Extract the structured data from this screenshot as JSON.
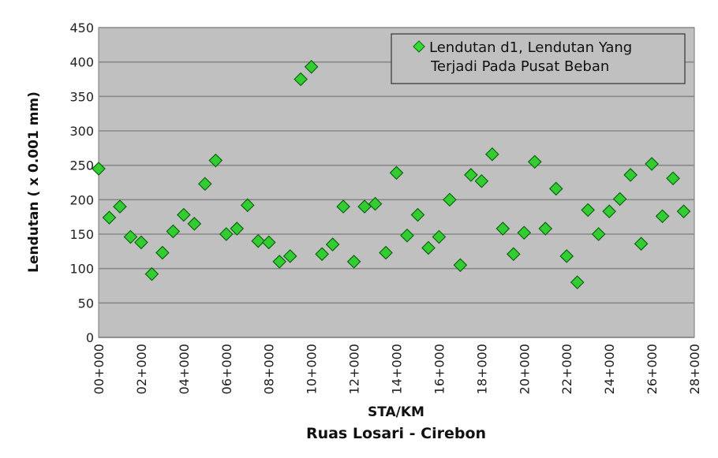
{
  "chart_data": {
    "type": "scatter",
    "xlabel": "STA/KM",
    "subtitle": "Ruas Losari - Cirebon",
    "ylabel": "Lendutan ( x 0.001 mm)",
    "ylim": [
      0,
      450
    ],
    "xlim": [
      0,
      28
    ],
    "y_ticks": [
      "0",
      "50",
      "100",
      "150",
      "200",
      "250",
      "300",
      "350",
      "400",
      "450"
    ],
    "x_ticks": [
      "00+000",
      "02+000",
      "04+000",
      "06+000",
      "08+000",
      "10+000",
      "12+000",
      "14+000",
      "16+000",
      "18+000",
      "20+000",
      "22+000",
      "24+000",
      "26+000",
      "28+000"
    ],
    "grid": "horizontal",
    "legend_position": "top-right",
    "series": [
      {
        "name": "Lendutan d1, Lendutan Yang Terjadi Pada Pusat Beban",
        "marker": "diamond",
        "color": "#33cc33",
        "x": [
          0,
          0.5,
          1,
          1.5,
          2,
          2.5,
          3,
          3.5,
          4,
          4.5,
          5,
          5.5,
          6,
          6.5,
          7,
          7.5,
          8,
          8.5,
          9,
          9.5,
          10,
          10.5,
          11,
          11.5,
          12,
          12.5,
          13,
          13.5,
          14,
          14.5,
          15,
          15.5,
          16,
          16.5,
          17,
          17.5,
          18,
          18.5,
          19,
          19.5,
          20,
          20.5,
          21,
          21.5,
          22,
          22.5,
          23,
          23.5,
          24,
          24.5,
          25,
          25.5,
          26,
          26.5,
          27,
          27.5
        ],
        "y": [
          245,
          174,
          190,
          146,
          138,
          92,
          123,
          154,
          178,
          165,
          223,
          257,
          150,
          158,
          192,
          140,
          138,
          110,
          118,
          375,
          393,
          121,
          135,
          190,
          110,
          190,
          194,
          123,
          239,
          148,
          178,
          130,
          146,
          200,
          105,
          236,
          227,
          266,
          158,
          121,
          152,
          255,
          158,
          216,
          118,
          80,
          185,
          150,
          183,
          201,
          236,
          136,
          252,
          176,
          231,
          183
        ]
      }
    ]
  }
}
